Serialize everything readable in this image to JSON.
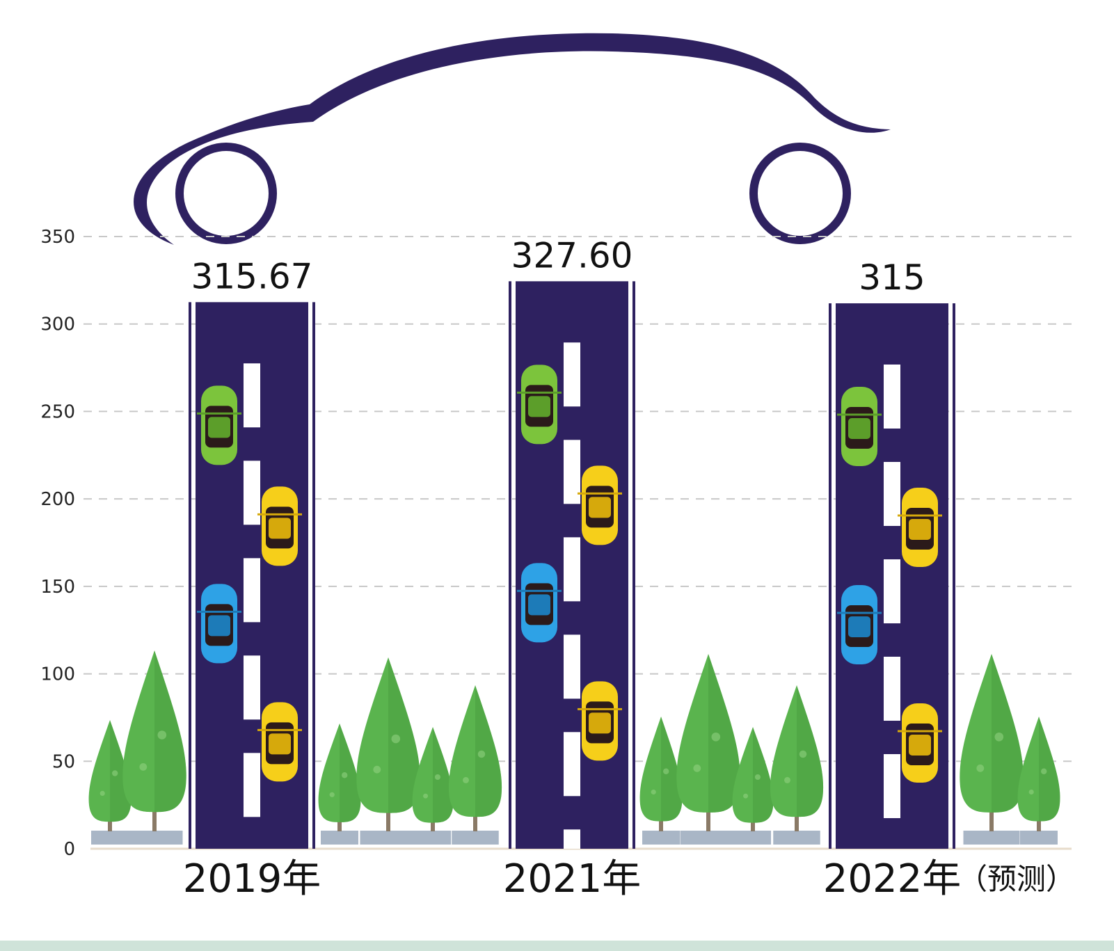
{
  "chart_data": {
    "type": "bar",
    "categories": [
      "2019年",
      "2021年",
      "2022年"
    ],
    "category_notes": [
      "",
      "",
      "（预测）"
    ],
    "values": [
      315.67,
      327.6,
      315
    ],
    "value_labels": [
      "315.67",
      "327.60",
      "315"
    ],
    "title": "",
    "xlabel": "",
    "ylabel": "",
    "ylim": [
      0,
      350
    ],
    "yticks": [
      "0",
      "50",
      "100",
      "150",
      "200",
      "250",
      "300",
      "350"
    ],
    "grid": true,
    "legend": "none"
  },
  "colors": {
    "road": "#2e2160",
    "lane_mark": "#ffffff",
    "car_outline": "#2e2160",
    "grid": "#c8c8c8",
    "tree": "#5ab44e",
    "tree_dark": "#4a9e40",
    "planter": "#a9b6c6",
    "trunk": "#8a7a66",
    "footer": "#cfe3d9"
  },
  "icons": {
    "decoration": "car-silhouette-icon",
    "bar_cars": [
      "green-car-icon",
      "yellow-car-icon",
      "blue-car-icon",
      "yellow-car-icon"
    ],
    "trees": "tree-icon"
  }
}
